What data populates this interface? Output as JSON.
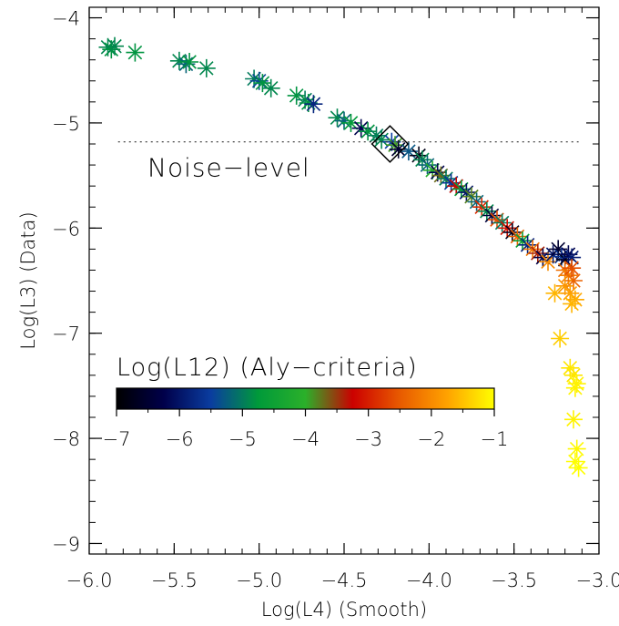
{
  "chart_data": {
    "type": "scatter",
    "xlabel": "Log(L4)   (Smooth)",
    "ylabel": "Log(L3)  (Data)",
    "xlim": [
      -6.0,
      -3.0
    ],
    "ylim": [
      -9.1,
      -3.9
    ],
    "x_ticks": [
      -6.0,
      -5.5,
      -5.0,
      -4.5,
      -4.0,
      -3.5,
      -3.0
    ],
    "x_tick_labels": [
      "−6.0",
      "−5.5",
      "−5.0",
      "−4.5",
      "−4.0",
      "−3.5",
      "−3.0"
    ],
    "y_ticks": [
      -9,
      -8,
      -7,
      -6,
      -5,
      -4
    ],
    "y_tick_labels": [
      "−9",
      "−8",
      "−7",
      "−6",
      "−5",
      "−4"
    ],
    "grid": false,
    "noise_level": {
      "y": -5.18,
      "label": "Noise−level"
    },
    "highlight": {
      "x": -4.23,
      "y": -5.2,
      "marker": "diamond"
    },
    "colorbar": {
      "title": "Log(L12)    (Aly−criteria)",
      "range": [
        -7,
        -1
      ],
      "ticks": [
        -7,
        -6,
        -5,
        -4,
        -3,
        -2,
        -1
      ],
      "tick_labels": [
        "−7",
        "−6",
        "−5",
        "−4",
        "−3",
        "−2",
        "−1"
      ],
      "colors": [
        "#000000",
        "#00004a",
        "#0a3da0",
        "#009a3a",
        "#2bb02a",
        "#cc0000",
        "#e85a00",
        "#ffa200",
        "#ffff00"
      ]
    },
    "points": [
      {
        "x": -5.89,
        "y": -4.28,
        "c": -4.9
      },
      {
        "x": -5.87,
        "y": -4.3,
        "c": -4.8
      },
      {
        "x": -5.85,
        "y": -4.27,
        "c": -4.9
      },
      {
        "x": -5.73,
        "y": -4.33,
        "c": -4.8
      },
      {
        "x": -5.47,
        "y": -4.41,
        "c": -4.9
      },
      {
        "x": -5.43,
        "y": -4.44,
        "c": -5.2
      },
      {
        "x": -5.41,
        "y": -4.42,
        "c": -4.8
      },
      {
        "x": -5.31,
        "y": -4.48,
        "c": -4.9
      },
      {
        "x": -5.03,
        "y": -4.58,
        "c": -5.0
      },
      {
        "x": -5.0,
        "y": -4.6,
        "c": -5.4
      },
      {
        "x": -4.98,
        "y": -4.62,
        "c": -4.8
      },
      {
        "x": -4.93,
        "y": -4.67,
        "c": -4.9
      },
      {
        "x": -4.78,
        "y": -4.74,
        "c": -4.8
      },
      {
        "x": -4.73,
        "y": -4.78,
        "c": -5.0
      },
      {
        "x": -4.71,
        "y": -4.81,
        "c": -4.8
      },
      {
        "x": -4.68,
        "y": -4.82,
        "c": -5.8
      },
      {
        "x": -4.54,
        "y": -4.95,
        "c": -4.9
      },
      {
        "x": -4.5,
        "y": -4.98,
        "c": -5.2
      },
      {
        "x": -4.46,
        "y": -5.0,
        "c": -4.7
      },
      {
        "x": -4.4,
        "y": -5.05,
        "c": -6.2
      },
      {
        "x": -4.36,
        "y": -5.08,
        "c": -4.8
      },
      {
        "x": -4.31,
        "y": -5.12,
        "c": -5.0
      },
      {
        "x": -4.28,
        "y": -5.16,
        "c": -4.9
      },
      {
        "x": -4.22,
        "y": -5.18,
        "c": -5.5
      },
      {
        "x": -4.2,
        "y": -5.21,
        "c": -3.9
      },
      {
        "x": -4.18,
        "y": -5.25,
        "c": -6.5
      },
      {
        "x": -4.12,
        "y": -5.27,
        "c": -5.3
      },
      {
        "x": -4.06,
        "y": -5.31,
        "c": -6.8
      },
      {
        "x": -4.04,
        "y": -5.35,
        "c": -4.9
      },
      {
        "x": -4.01,
        "y": -5.4,
        "c": -5.2
      },
      {
        "x": -3.98,
        "y": -5.45,
        "c": -4.1
      },
      {
        "x": -3.95,
        "y": -5.47,
        "c": -6.2
      },
      {
        "x": -3.93,
        "y": -5.5,
        "c": -3.7
      },
      {
        "x": -3.9,
        "y": -5.53,
        "c": -5.0
      },
      {
        "x": -3.87,
        "y": -5.57,
        "c": -5.6
      },
      {
        "x": -3.84,
        "y": -5.6,
        "c": -3.3
      },
      {
        "x": -3.81,
        "y": -5.63,
        "c": -4.7
      },
      {
        "x": -3.78,
        "y": -5.66,
        "c": -6.0
      },
      {
        "x": -3.75,
        "y": -5.7,
        "c": -3.8
      },
      {
        "x": -3.72,
        "y": -5.75,
        "c": -5.2
      },
      {
        "x": -3.69,
        "y": -5.8,
        "c": -2.9
      },
      {
        "x": -3.66,
        "y": -5.84,
        "c": -4.9
      },
      {
        "x": -3.63,
        "y": -5.88,
        "c": -6.4
      },
      {
        "x": -3.6,
        "y": -5.92,
        "c": -2.6
      },
      {
        "x": -3.57,
        "y": -5.95,
        "c": -5.0
      },
      {
        "x": -3.54,
        "y": -6.0,
        "c": -3.1
      },
      {
        "x": -3.51,
        "y": -6.04,
        "c": -6.7
      },
      {
        "x": -3.48,
        "y": -6.08,
        "c": -2.4
      },
      {
        "x": -3.45,
        "y": -6.12,
        "c": -4.6
      },
      {
        "x": -3.42,
        "y": -6.16,
        "c": -5.8
      },
      {
        "x": -3.39,
        "y": -6.2,
        "c": -2.2
      },
      {
        "x": -3.36,
        "y": -6.24,
        "c": -3.4
      },
      {
        "x": -3.33,
        "y": -6.28,
        "c": -6.3
      },
      {
        "x": -3.3,
        "y": -6.32,
        "c": -2.0
      },
      {
        "x": -3.27,
        "y": -6.25,
        "c": -6.0
      },
      {
        "x": -3.24,
        "y": -6.2,
        "c": -6.5
      },
      {
        "x": -3.22,
        "y": -6.27,
        "c": -5.6
      },
      {
        "x": -3.2,
        "y": -6.3,
        "c": -6.8
      },
      {
        "x": -3.18,
        "y": -6.25,
        "c": -6.2
      },
      {
        "x": -3.16,
        "y": -6.28,
        "c": -5.9
      },
      {
        "x": -3.2,
        "y": -6.4,
        "c": -2.3
      },
      {
        "x": -3.18,
        "y": -6.45,
        "c": -2.1
      },
      {
        "x": -3.16,
        "y": -6.38,
        "c": -2.6
      },
      {
        "x": -3.15,
        "y": -6.5,
        "c": -2.4
      },
      {
        "x": -3.2,
        "y": -6.55,
        "c": -1.9
      },
      {
        "x": -3.26,
        "y": -6.62,
        "c": -1.6
      },
      {
        "x": -3.17,
        "y": -6.62,
        "c": -1.8
      },
      {
        "x": -3.14,
        "y": -6.68,
        "c": -1.7
      },
      {
        "x": -3.16,
        "y": -6.72,
        "c": -1.6
      },
      {
        "x": -3.23,
        "y": -7.05,
        "c": -1.4
      },
      {
        "x": -3.17,
        "y": -7.33,
        "c": -1.2
      },
      {
        "x": -3.15,
        "y": -7.4,
        "c": -1.2
      },
      {
        "x": -3.13,
        "y": -7.48,
        "c": -1.1
      },
      {
        "x": -3.14,
        "y": -7.52,
        "c": -1.1
      },
      {
        "x": -3.15,
        "y": -7.82,
        "c": -1.1
      },
      {
        "x": -3.13,
        "y": -8.1,
        "c": -1.05
      },
      {
        "x": -3.14,
        "y": -8.22,
        "c": -1.02
      },
      {
        "x": -3.12,
        "y": -8.28,
        "c": -1.0
      }
    ]
  }
}
